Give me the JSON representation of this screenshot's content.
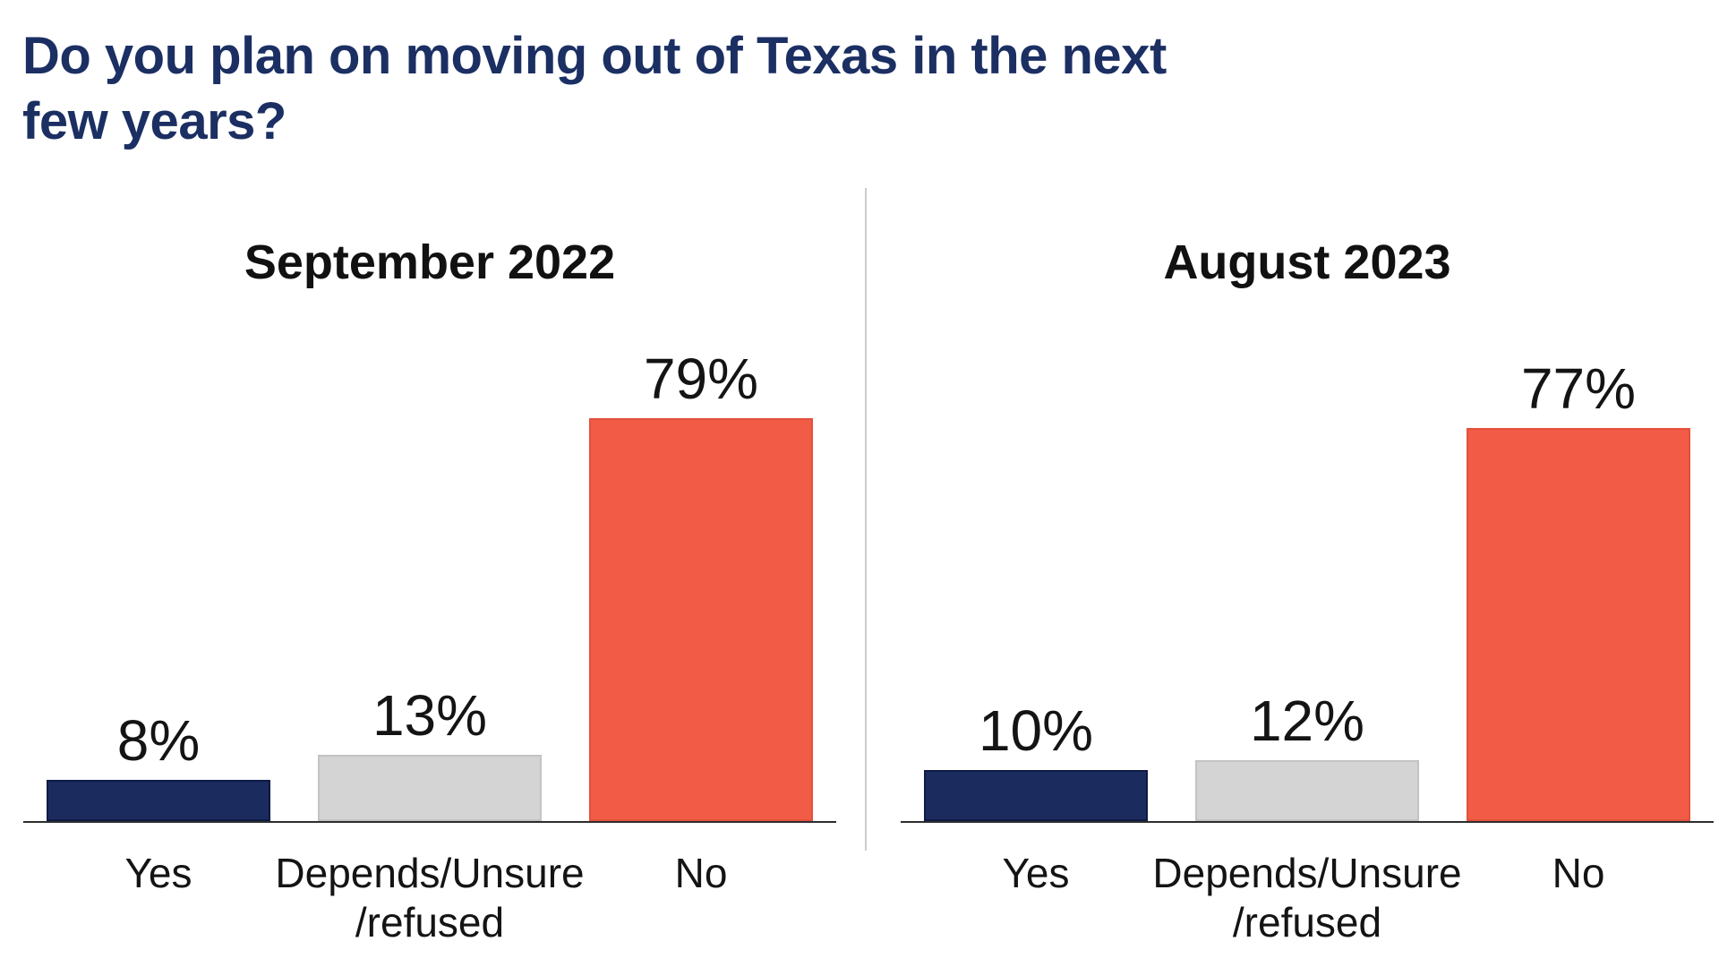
{
  "title_lines": [
    "Do you plan on moving out of Texas in the next",
    "few years?"
  ],
  "colors": {
    "title": "#1b2f63",
    "text": "#141414",
    "axis": "#2d2d2d",
    "divider": "#cccccc",
    "navy": "#1c2b5e",
    "navy_border": "#0d1c45",
    "gray": "#d4d4d4",
    "gray_border": "#c3c3c3",
    "orange": "#f25b45",
    "orange_border": "#e2523e"
  },
  "chart_data": [
    {
      "type": "bar",
      "title": "September 2022",
      "categories": [
        "Yes",
        "Depends/Unsure\n/refused",
        "No"
      ],
      "values": [
        8,
        13,
        79
      ],
      "value_labels": [
        "8%",
        "13%",
        "79%"
      ],
      "series_colors": [
        "navy",
        "gray",
        "orange"
      ],
      "ylim": [
        0,
        100
      ],
      "xlabel": "",
      "ylabel": "",
      "grid": false,
      "legend": false
    },
    {
      "type": "bar",
      "title": "August 2023",
      "categories": [
        "Yes",
        "Depends/Unsure\n/refused",
        "No"
      ],
      "values": [
        10,
        12,
        77
      ],
      "value_labels": [
        "10%",
        "12%",
        "77%"
      ],
      "series_colors": [
        "navy",
        "gray",
        "orange"
      ],
      "ylim": [
        0,
        100
      ],
      "xlabel": "",
      "ylabel": "",
      "grid": false,
      "legend": false
    }
  ]
}
